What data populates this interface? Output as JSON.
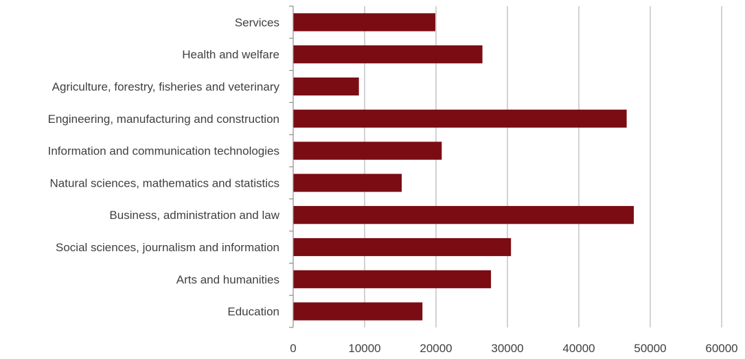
{
  "chart_data": {
    "type": "bar",
    "orientation": "horizontal",
    "categories": [
      "Services",
      "Health and welfare",
      "Agriculture, forestry, fisheries and veterinary",
      "Engineering, manufacturing and construction",
      "Information and communication technologies",
      "Natural sciences, mathematics and statistics",
      "Business, administration and law",
      "Social sciences, journalism and information",
      "Arts and humanities",
      "Education"
    ],
    "values": [
      19900,
      26500,
      9200,
      46700,
      20800,
      15200,
      47700,
      30500,
      27700,
      18100
    ],
    "xlim": [
      0,
      60000
    ],
    "xticks": [
      "0",
      "10000",
      "20000",
      "30000",
      "40000",
      "50000",
      "60000"
    ],
    "grid": "vertical major gridlines",
    "bar_color": "#7b0c14",
    "title": "",
    "xlabel": "",
    "ylabel": ""
  }
}
